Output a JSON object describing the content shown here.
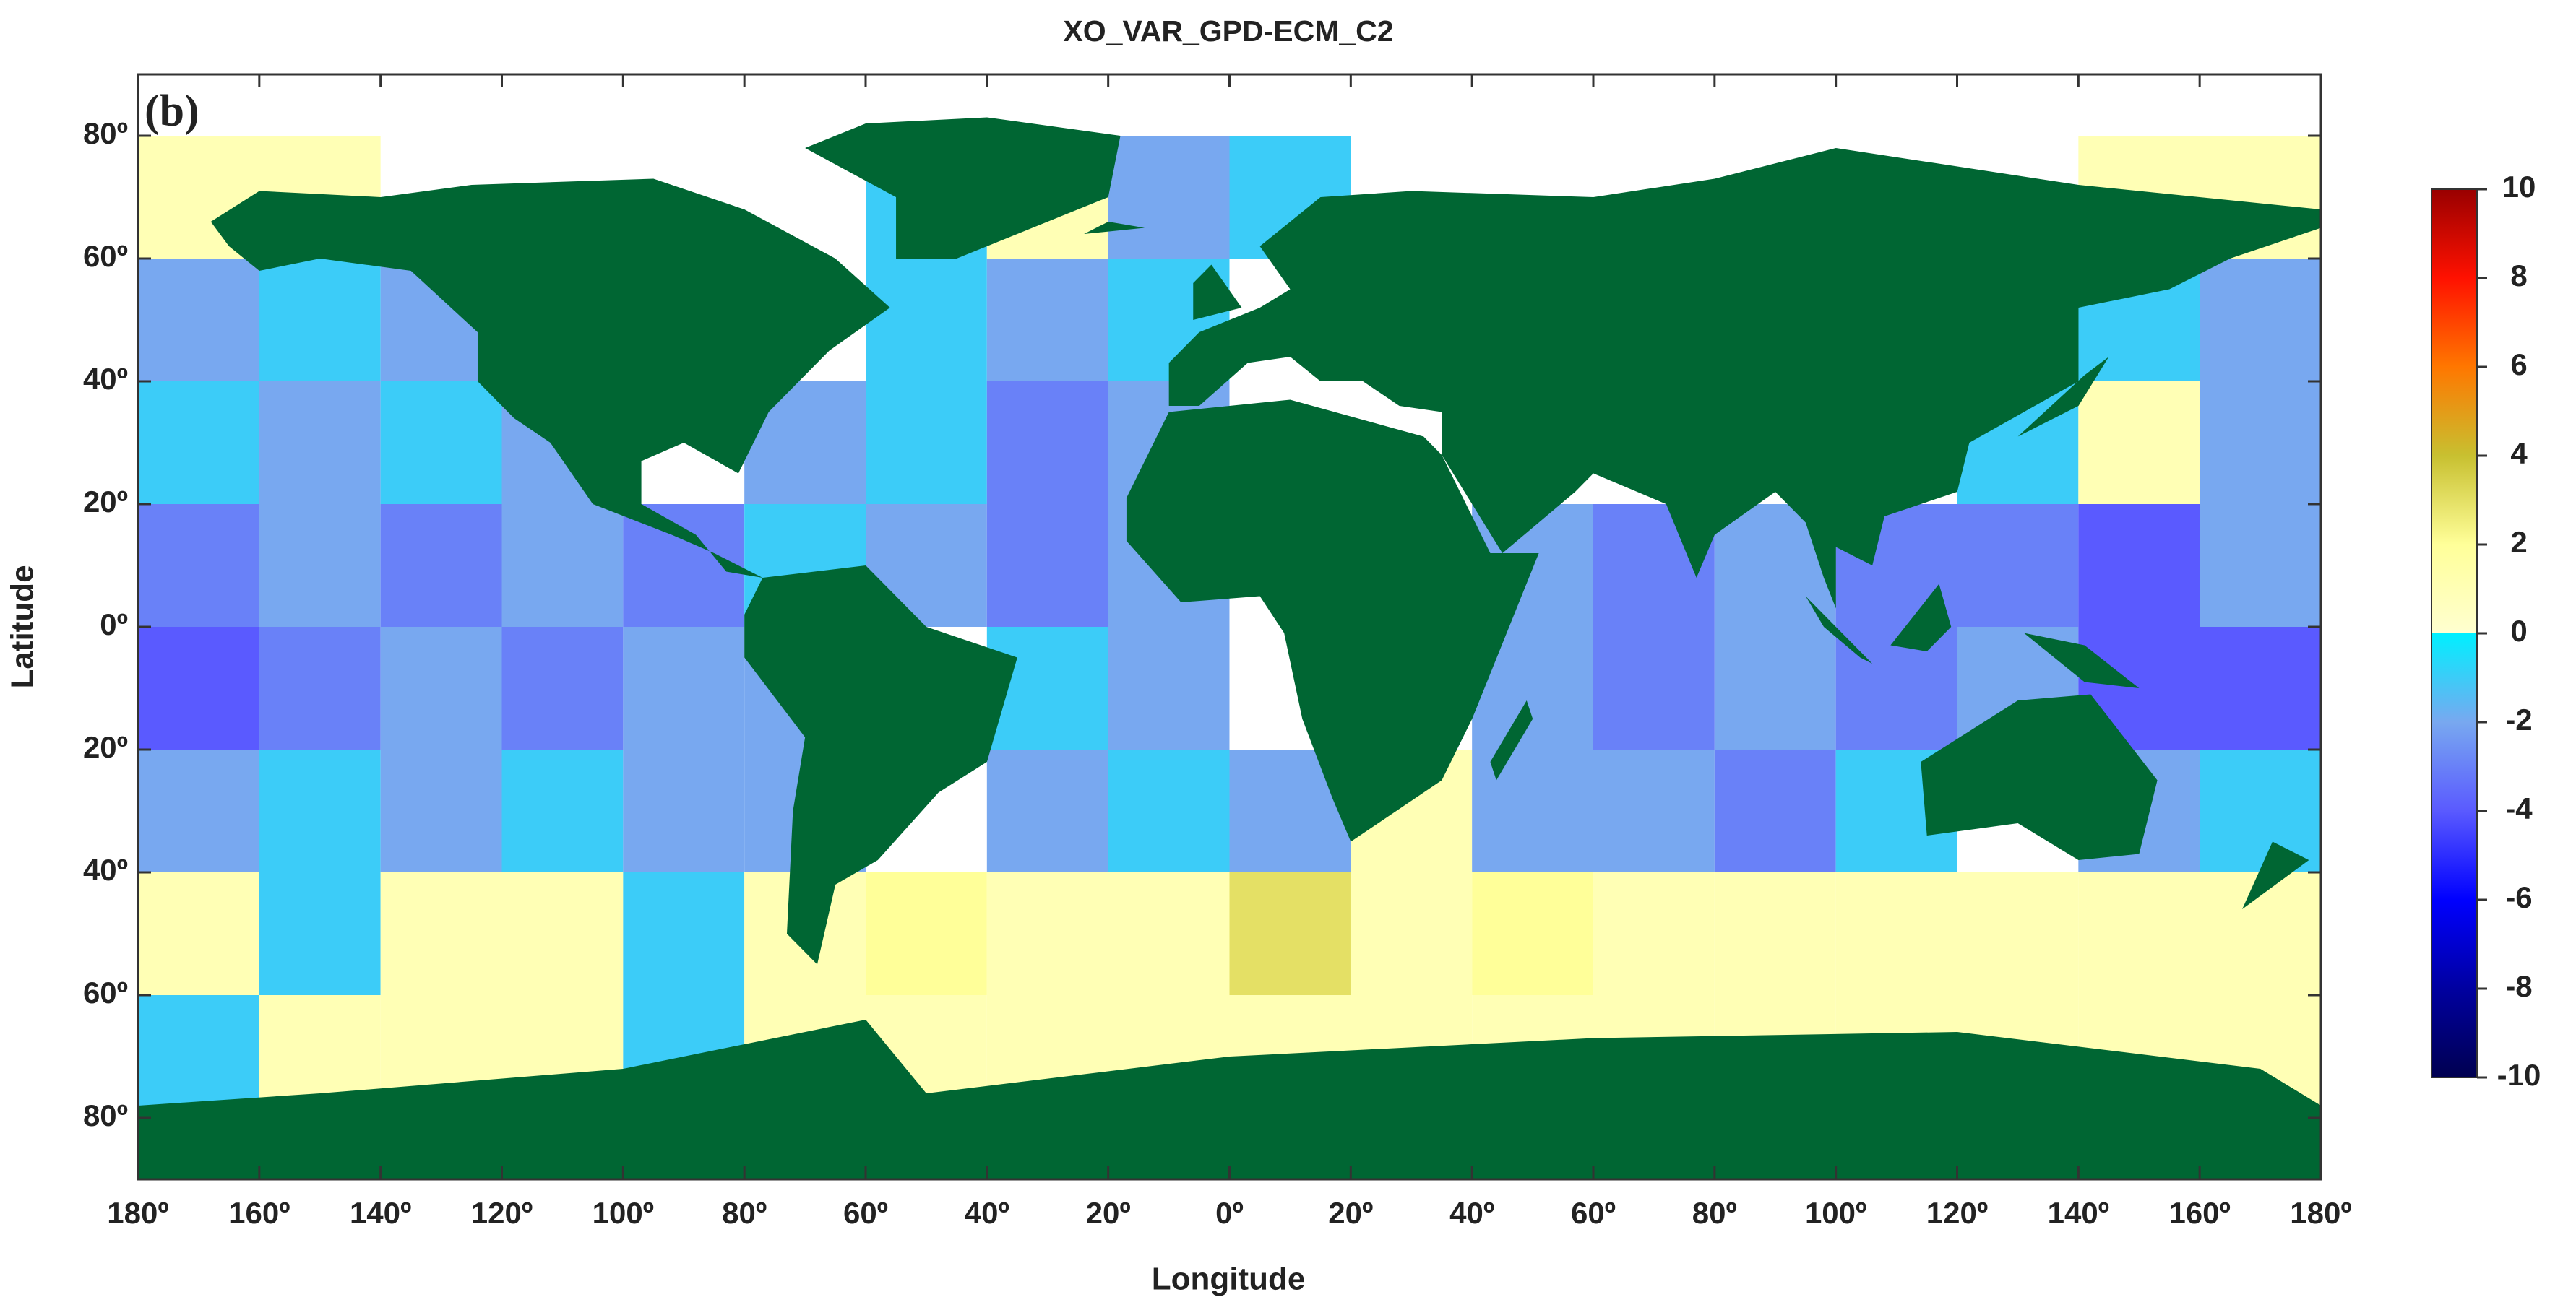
{
  "chart_data": {
    "type": "heatmap",
    "title": "XO_VAR_GPD-ECM_C2",
    "panel_label": "(b)",
    "x_label": "Longitude",
    "y_label": "Latitude",
    "x": [
      -180,
      -160,
      -140,
      -120,
      -100,
      -80,
      -60,
      -40,
      -20,
      0,
      20,
      40,
      60,
      80,
      100,
      120,
      140,
      160,
      180
    ],
    "y": [
      80,
      60,
      40,
      20,
      0,
      -20,
      -40,
      -60,
      -80
    ],
    "z": [
      [
        1,
        1,
        null,
        null,
        null,
        null,
        -1,
        1,
        -2,
        -1,
        null,
        null,
        null,
        null,
        null,
        null,
        1,
        1
      ],
      [
        -2,
        -1,
        -2,
        null,
        null,
        null,
        -1,
        -2,
        -1,
        null,
        null,
        null,
        null,
        null,
        null,
        -2,
        -1,
        -2
      ],
      [
        -1,
        -2,
        -1,
        -2,
        null,
        -2,
        -1,
        -3,
        -2,
        null,
        null,
        null,
        null,
        null,
        null,
        -1,
        1,
        -2
      ],
      [
        -3,
        -2,
        -3,
        -2,
        -3,
        -1,
        -2,
        -3,
        -2,
        null,
        null,
        -2,
        -3,
        -2,
        -3,
        -3,
        -4,
        -2
      ],
      [
        -4,
        -3,
        -2,
        -3,
        -2,
        -2,
        null,
        -1,
        -2,
        null,
        null,
        -2,
        -3,
        -2,
        -3,
        -2,
        -4,
        -4
      ],
      [
        -2,
        -1,
        -2,
        -1,
        -2,
        -2,
        null,
        -2,
        -1,
        -2,
        1,
        -2,
        -2,
        -3,
        -1,
        null,
        -2,
        -1
      ],
      [
        1,
        -1,
        1,
        1,
        -1,
        1,
        2,
        1,
        1,
        3,
        1,
        2,
        1,
        1,
        1,
        1,
        1,
        1
      ],
      [
        -1,
        1,
        1,
        1,
        -1,
        1,
        1,
        1,
        1,
        1,
        1,
        1,
        1,
        1,
        1,
        1,
        1,
        1
      ]
    ],
    "xlim": [
      -180,
      180
    ],
    "ylim": [
      -90,
      90
    ],
    "xticks": [
      {
        "value": -180,
        "label": "180º"
      },
      {
        "value": -160,
        "label": "160º"
      },
      {
        "value": -140,
        "label": "140º"
      },
      {
        "value": -120,
        "label": "120º"
      },
      {
        "value": -100,
        "label": "100º"
      },
      {
        "value": -80,
        "label": "80º"
      },
      {
        "value": -60,
        "label": "60º"
      },
      {
        "value": -40,
        "label": "40º"
      },
      {
        "value": -20,
        "label": "20º"
      },
      {
        "value": 0,
        "label": "0º"
      },
      {
        "value": 20,
        "label": "20º"
      },
      {
        "value": 40,
        "label": "40º"
      },
      {
        "value": 60,
        "label": "60º"
      },
      {
        "value": 80,
        "label": "80º"
      },
      {
        "value": 100,
        "label": "100º"
      },
      {
        "value": 120,
        "label": "120º"
      },
      {
        "value": 140,
        "label": "140º"
      },
      {
        "value": 160,
        "label": "160º"
      },
      {
        "value": 180,
        "label": "180º"
      }
    ],
    "yticks": [
      {
        "value": 80,
        "label": "80º"
      },
      {
        "value": 60,
        "label": "60º"
      },
      {
        "value": 40,
        "label": "40º"
      },
      {
        "value": 20,
        "label": "20º"
      },
      {
        "value": 0,
        "label": "0º"
      },
      {
        "value": -20,
        "label": "20º"
      },
      {
        "value": -40,
        "label": "40º"
      },
      {
        "value": -60,
        "label": "60º"
      },
      {
        "value": -80,
        "label": "80º"
      }
    ],
    "colorbar": {
      "lim": [
        -10,
        10
      ],
      "ticks": [
        10,
        8,
        6,
        4,
        2,
        0,
        -2,
        -4,
        -6,
        -8,
        -10
      ],
      "stops": [
        {
          "value": -10,
          "color": "#000050"
        },
        {
          "value": -8,
          "color": "#0000a0"
        },
        {
          "value": -6,
          "color": "#0000ff"
        },
        {
          "value": -4,
          "color": "#5a5aff"
        },
        {
          "value": -2,
          "color": "#78a8f0"
        },
        {
          "value": 0,
          "color": "#00f0ff"
        },
        {
          "value": 0,
          "color": "#ffffd0"
        },
        {
          "value": 2,
          "color": "#ffff99"
        },
        {
          "value": 4,
          "color": "#c8c030"
        },
        {
          "value": 6,
          "color": "#ff7700"
        },
        {
          "value": 8,
          "color": "#ff1100"
        },
        {
          "value": 10,
          "color": "#990000"
        }
      ]
    }
  }
}
